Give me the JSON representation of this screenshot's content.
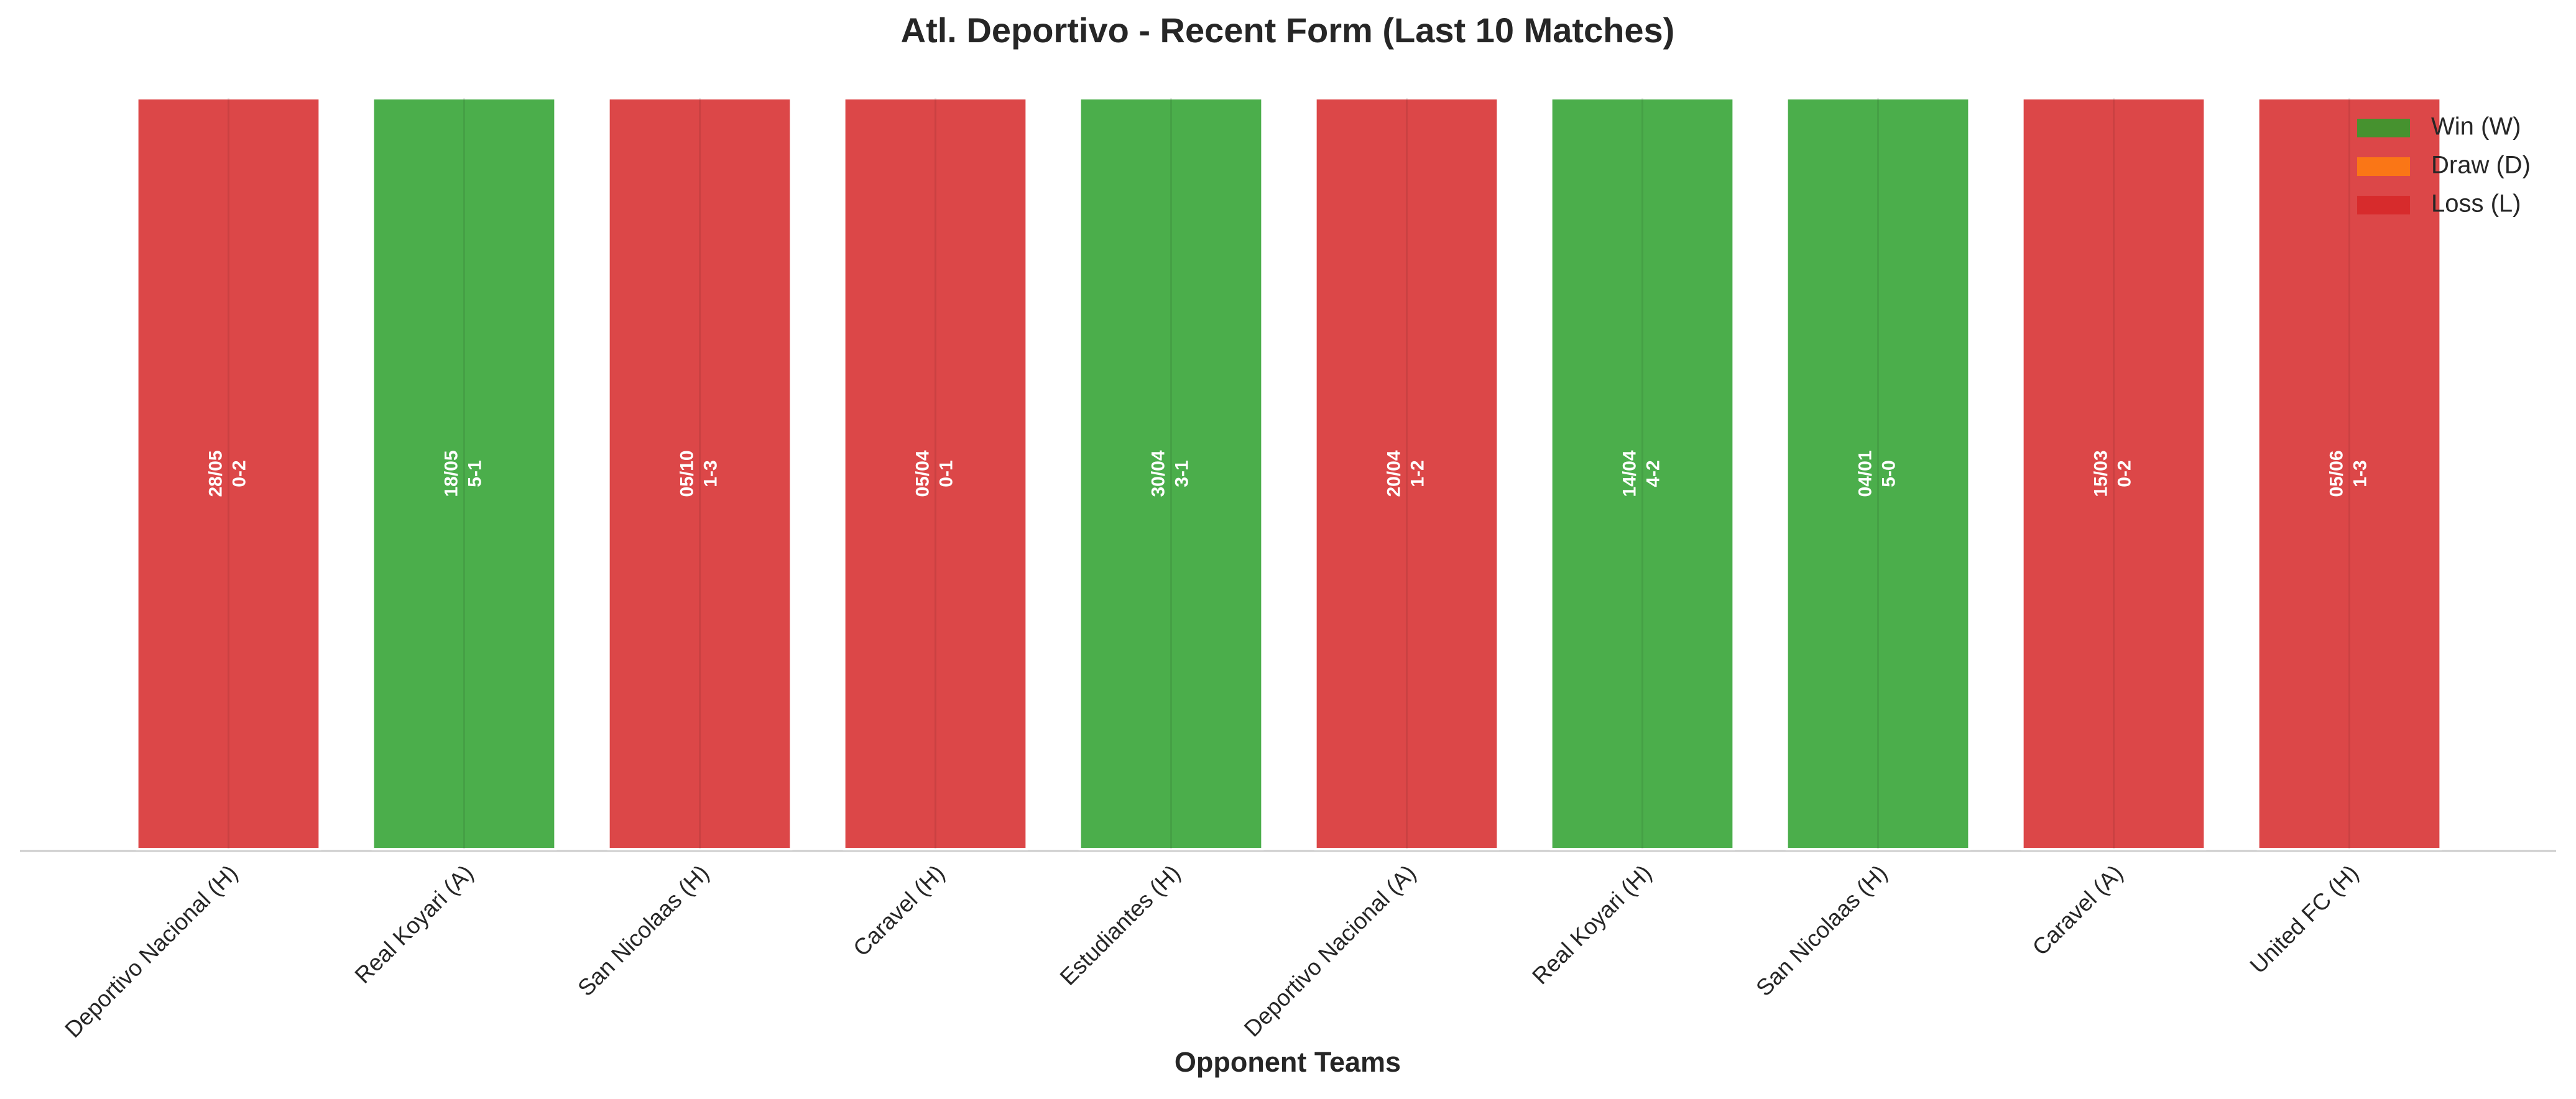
{
  "chart_data": {
    "type": "bar",
    "title": "Atl. Deportivo - Recent Form (Last 10 Matches)",
    "x_label": "Opponent Teams",
    "categories": [
      "Deportivo Nacional (H)",
      "Real Koyari (A)",
      "San Nicolaas (H)",
      "Caravel (H)",
      "Estudiantes (H)",
      "Deportivo Nacional (A)",
      "Real Koyari (H)",
      "San Nicolaas (H)",
      "Caravel (A)",
      "United FC (H)"
    ],
    "values": [
      1,
      1,
      1,
      1,
      1,
      1,
      1,
      1,
      1,
      1
    ],
    "colors": [
      "#d62728",
      "#2ca02c",
      "#d62728",
      "#d62728",
      "#2ca02c",
      "#d62728",
      "#2ca02c",
      "#2ca02c",
      "#d62728",
      "#d62728"
    ],
    "dates": [
      "28/05",
      "18/05",
      "05/10",
      "05/04",
      "30/04",
      "20/04",
      "14/04",
      "04/01",
      "15/03",
      "05/06"
    ],
    "scores": [
      "0-2",
      "5-1",
      "1-3",
      "0-1",
      "3-1",
      "1-2",
      "4-2",
      "5-0",
      "0-2",
      "1-3"
    ],
    "ylim": [
      0,
      1
    ],
    "legend": [
      {
        "name": "Win (W)",
        "color": "#2ca02c"
      },
      {
        "name": "Draw (D)",
        "color": "#ff7f0e"
      },
      {
        "name": "Loss (L)",
        "color": "#d62728"
      }
    ],
    "legend_position": "upper right"
  }
}
